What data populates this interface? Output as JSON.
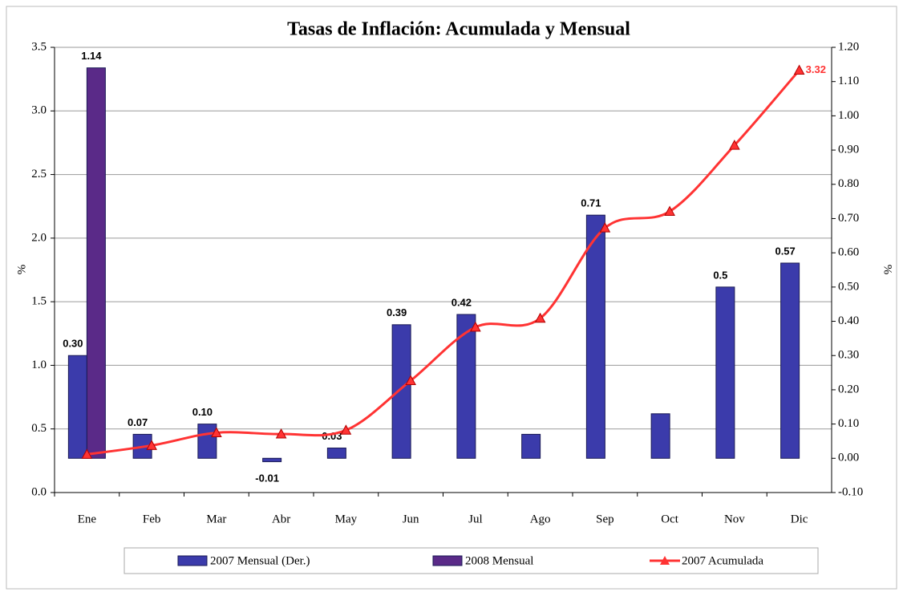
{
  "chart_data": {
    "type": "bar",
    "title": "Tasas de Inflación: Acumulada y Mensual",
    "categories": [
      "Ene",
      "Feb",
      "Mar",
      "Abr",
      "May",
      "Jun",
      "Jul",
      "Ago",
      "Sep",
      "Oct",
      "Nov",
      "Dic"
    ],
    "ylabel": "%",
    "y2label": "%",
    "ylim": [
      0,
      3.5
    ],
    "yticks": [
      {
        "value": 0,
        "label": "0.0"
      },
      0.5,
      {
        "value": 1,
        "label": "1.0"
      },
      1.5,
      {
        "value": 2,
        "label": "2.0"
      },
      2.5,
      {
        "value": 3,
        "label": "3.0"
      },
      3.5
    ],
    "y2lim": [
      -0.1,
      1.2
    ],
    "y2ticks": [
      {
        "value": -0.1,
        "label": "-0.10"
      },
      {
        "value": 0,
        "label": "0.00"
      },
      {
        "value": 0.1,
        "label": "0.10"
      },
      {
        "value": 0.2,
        "label": "0.20"
      },
      {
        "value": 0.3,
        "label": "0.30"
      },
      {
        "value": 0.4,
        "label": "0.40"
      },
      {
        "value": 0.5,
        "label": "0.50"
      },
      {
        "value": 0.6,
        "label": "0.60"
      },
      {
        "value": 0.7,
        "label": "0.70"
      },
      {
        "value": 0.8,
        "label": "0.80"
      },
      {
        "value": 0.9,
        "label": "0.90"
      },
      {
        "value": 1,
        "label": "1.00"
      },
      {
        "value": 1.1,
        "label": "1.10"
      },
      {
        "value": 1.2,
        "label": "1.20"
      }
    ],
    "grid": true,
    "legend": "bottom",
    "series": [
      {
        "name": "2007 Mensual (Der.)",
        "type": "bar",
        "axis": "y2",
        "color": "#3b3bab",
        "values": [
          0.3,
          0.07,
          0.1,
          -0.01,
          0.03,
          0.39,
          0.42,
          0.07,
          0.71,
          0.13,
          0.5,
          0.57
        ],
        "value_labels": [
          "0.30",
          "0.07",
          "0.10",
          "-0.01",
          "0.03",
          "0.39",
          "0.42",
          null,
          "0.71",
          null,
          "0.5",
          "0.57"
        ]
      },
      {
        "name": "2008 Mensual",
        "type": "bar",
        "axis": "y2",
        "color": "#5a2a88",
        "values": [
          1.14,
          null,
          null,
          null,
          null,
          null,
          null,
          null,
          null,
          null,
          null,
          null
        ],
        "value_labels": [
          "1.14",
          null,
          null,
          null,
          null,
          null,
          null,
          null,
          null,
          null,
          null,
          null
        ]
      },
      {
        "name": "2007 Acumulada",
        "type": "line",
        "color": "#ff3333",
        "values": [
          0.3,
          0.37,
          0.47,
          0.46,
          0.49,
          0.88,
          1.3,
          1.37,
          2.08,
          2.21,
          2.73,
          3.32
        ],
        "value_labels": [
          null,
          null,
          null,
          null,
          null,
          null,
          null,
          null,
          null,
          null,
          null,
          "3.32"
        ]
      }
    ]
  }
}
